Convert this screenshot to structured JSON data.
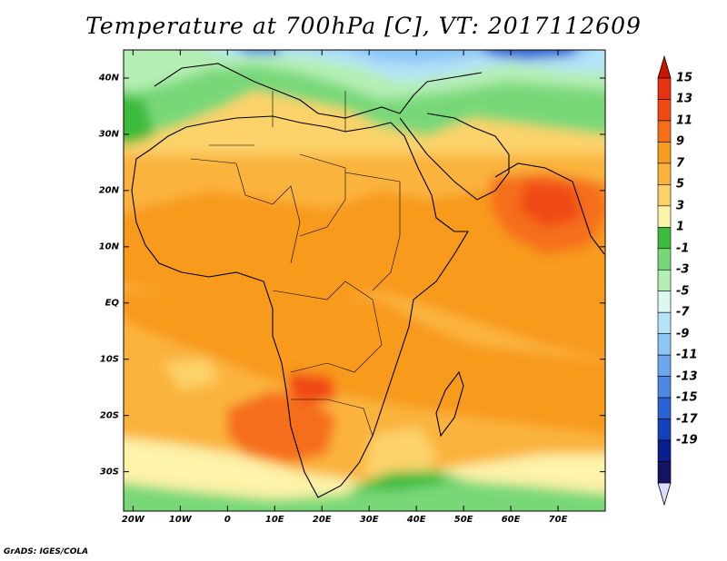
{
  "title": "Temperature at 700hPa [C], VT: 2017112609",
  "credit": "GrADS: IGES/COLA",
  "map": {
    "lat_labels": [
      "40N",
      "30N",
      "20N",
      "10N",
      "EQ",
      "10S",
      "20S",
      "30S"
    ],
    "lat_values": [
      40,
      30,
      20,
      10,
      0,
      -10,
      -20,
      -30
    ],
    "lon_labels": [
      "20W",
      "10W",
      "0",
      "10E",
      "20E",
      "30E",
      "40E",
      "50E",
      "60E",
      "70E"
    ],
    "lon_values": [
      -20,
      -10,
      0,
      10,
      20,
      30,
      40,
      50,
      60,
      70
    ],
    "lon_range": [
      -22,
      80
    ],
    "lat_range": [
      -37,
      45
    ]
  },
  "colorbar": {
    "labels": [
      "15",
      "13",
      "11",
      "9",
      "7",
      "5",
      "3",
      "1",
      "-1",
      "-3",
      "-5",
      "-7",
      "-9",
      "-11",
      "-13",
      "-15",
      "-17",
      "-19"
    ],
    "colors": [
      "#e83214",
      "#f04a14",
      "#f56e1a",
      "#f89a1e",
      "#fab43c",
      "#fbd26a",
      "#fcf2a8",
      "#3cbb3c",
      "#78d878",
      "#b4eeb4",
      "#dcf8f0",
      "#b4e2f8",
      "#8cc6f4",
      "#6ea8ec",
      "#4c88e4",
      "#2a64d4",
      "#1440b8",
      "#08208e",
      "#141464"
    ],
    "top_arrow_color": "#cc1400",
    "bottom_arrow_color": "#dcdcff"
  }
}
